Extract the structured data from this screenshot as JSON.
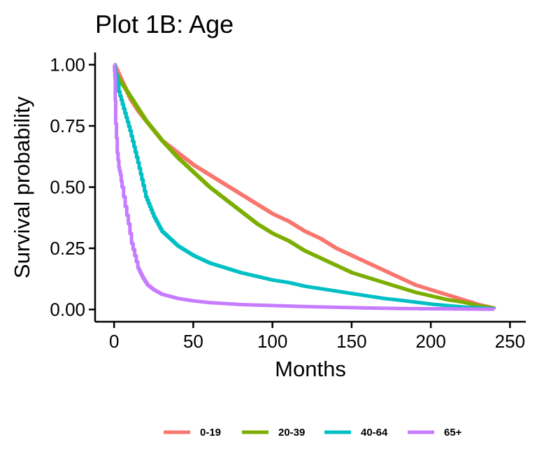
{
  "chart_data": {
    "type": "line",
    "title": "Plot 1B: Age",
    "xlabel": "Months",
    "ylabel": "Survival probability",
    "xlim": [
      -12,
      260
    ],
    "ylim": [
      -0.05,
      1.05
    ],
    "x_ticks": [
      0,
      50,
      100,
      150,
      200,
      250
    ],
    "x_tick_labels": [
      "0",
      "50",
      "100",
      "150",
      "200",
      "250"
    ],
    "y_ticks": [
      0,
      0.25,
      0.5,
      0.75,
      1.0
    ],
    "y_tick_labels": [
      "0.00",
      "0.25",
      "0.50",
      "0.75",
      "1.00"
    ],
    "grid": false,
    "legend_position": "bottom",
    "series": [
      {
        "name": "0-19",
        "color": "#F8766D",
        "points": [
          [
            0,
            1.0
          ],
          [
            5,
            0.93
          ],
          [
            10,
            0.86
          ],
          [
            15,
            0.81
          ],
          [
            20,
            0.77
          ],
          [
            25,
            0.73
          ],
          [
            30,
            0.69
          ],
          [
            40,
            0.64
          ],
          [
            50,
            0.59
          ],
          [
            60,
            0.55
          ],
          [
            70,
            0.51
          ],
          [
            80,
            0.47
          ],
          [
            90,
            0.43
          ],
          [
            100,
            0.39
          ],
          [
            110,
            0.36
          ],
          [
            120,
            0.32
          ],
          [
            130,
            0.29
          ],
          [
            140,
            0.25
          ],
          [
            150,
            0.22
          ],
          [
            160,
            0.19
          ],
          [
            170,
            0.16
          ],
          [
            180,
            0.13
          ],
          [
            190,
            0.1
          ],
          [
            200,
            0.08
          ],
          [
            210,
            0.06
          ],
          [
            220,
            0.04
          ],
          [
            230,
            0.02
          ],
          [
            240,
            0.005
          ]
        ]
      },
      {
        "name": "20-39",
        "color": "#7CAE00",
        "points": [
          [
            0,
            1.0
          ],
          [
            1,
            0.96
          ],
          [
            5,
            0.92
          ],
          [
            10,
            0.87
          ],
          [
            15,
            0.82
          ],
          [
            20,
            0.77
          ],
          [
            25,
            0.73
          ],
          [
            30,
            0.69
          ],
          [
            40,
            0.62
          ],
          [
            50,
            0.56
          ],
          [
            60,
            0.5
          ],
          [
            70,
            0.45
          ],
          [
            80,
            0.4
          ],
          [
            90,
            0.35
          ],
          [
            100,
            0.31
          ],
          [
            110,
            0.28
          ],
          [
            120,
            0.24
          ],
          [
            130,
            0.21
          ],
          [
            140,
            0.18
          ],
          [
            150,
            0.15
          ],
          [
            160,
            0.13
          ],
          [
            170,
            0.11
          ],
          [
            180,
            0.09
          ],
          [
            190,
            0.07
          ],
          [
            200,
            0.055
          ],
          [
            210,
            0.04
          ],
          [
            220,
            0.03
          ],
          [
            230,
            0.015
          ],
          [
            240,
            0.005
          ]
        ]
      },
      {
        "name": "40-64",
        "color": "#00BFC4",
        "points": [
          [
            0,
            1.0
          ],
          [
            1,
            0.96
          ],
          [
            3,
            0.89
          ],
          [
            6,
            0.82
          ],
          [
            10,
            0.73
          ],
          [
            15,
            0.6
          ],
          [
            20,
            0.46
          ],
          [
            25,
            0.38
          ],
          [
            30,
            0.32
          ],
          [
            40,
            0.26
          ],
          [
            50,
            0.22
          ],
          [
            60,
            0.19
          ],
          [
            70,
            0.17
          ],
          [
            80,
            0.15
          ],
          [
            90,
            0.135
          ],
          [
            100,
            0.12
          ],
          [
            110,
            0.11
          ],
          [
            120,
            0.095
          ],
          [
            130,
            0.085
          ],
          [
            140,
            0.075
          ],
          [
            150,
            0.065
          ],
          [
            160,
            0.055
          ],
          [
            170,
            0.045
          ],
          [
            180,
            0.038
          ],
          [
            190,
            0.03
          ],
          [
            200,
            0.022
          ],
          [
            210,
            0.016
          ],
          [
            220,
            0.01
          ],
          [
            230,
            0.006
          ],
          [
            240,
            0.003
          ]
        ]
      },
      {
        "name": "65+",
        "color": "#C77CFF",
        "points": [
          [
            0,
            1.0
          ],
          [
            0.5,
            0.95
          ],
          [
            1,
            0.76
          ],
          [
            2,
            0.64
          ],
          [
            3,
            0.58
          ],
          [
            4,
            0.55
          ],
          [
            5,
            0.5
          ],
          [
            7,
            0.42
          ],
          [
            9,
            0.35
          ],
          [
            11,
            0.27
          ],
          [
            13,
            0.22
          ],
          [
            15,
            0.17
          ],
          [
            18,
            0.13
          ],
          [
            21,
            0.1
          ],
          [
            25,
            0.08
          ],
          [
            30,
            0.062
          ],
          [
            40,
            0.045
          ],
          [
            50,
            0.035
          ],
          [
            60,
            0.028
          ],
          [
            80,
            0.02
          ],
          [
            100,
            0.016
          ],
          [
            120,
            0.012
          ],
          [
            140,
            0.009
          ],
          [
            160,
            0.006
          ],
          [
            180,
            0.004
          ],
          [
            200,
            0.003
          ],
          [
            220,
            0.002
          ],
          [
            240,
            0.001
          ]
        ]
      }
    ]
  }
}
